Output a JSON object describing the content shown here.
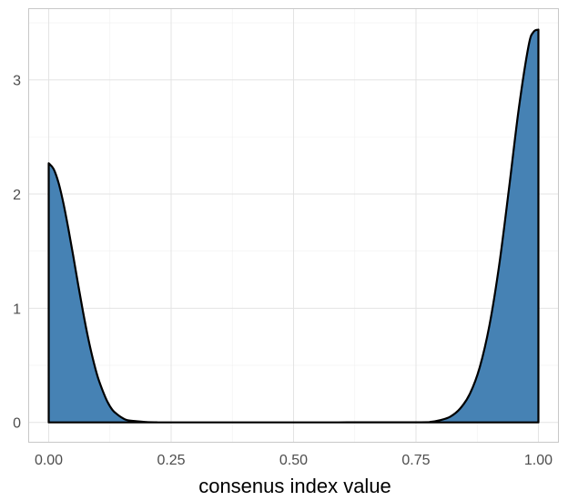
{
  "chart_data": {
    "type": "area",
    "title": "",
    "xlabel": "consenus index value",
    "ylabel": "",
    "xlim": [
      -0.04,
      1.04
    ],
    "ylim": [
      -0.17,
      3.62
    ],
    "x_ticks": [
      0,
      0.25,
      0.5,
      0.75,
      1
    ],
    "x_tick_labels": [
      "0.00",
      "0.25",
      "0.50",
      "0.75",
      "1.00"
    ],
    "y_ticks": [
      0,
      1,
      2,
      3
    ],
    "y_tick_labels": [
      "0",
      "1",
      "2",
      "3"
    ],
    "grid": true,
    "legend": "none",
    "fill_color": "#4682B4",
    "line_color": "#000000",
    "series": [
      {
        "x": [
          0,
          0.01,
          0.02,
          0.03,
          0.04,
          0.05,
          0.06,
          0.07,
          0.08,
          0.09,
          0.1,
          0.11,
          0.12,
          0.13,
          0.14,
          0.15,
          0.16,
          0.18,
          0.2,
          0.22,
          0.25,
          0.5,
          0.75,
          0.78,
          0.8,
          0.82,
          0.84,
          0.86,
          0.88,
          0.9,
          0.92,
          0.94,
          0.96,
          0.98,
          0.99,
          1
        ],
        "y": [
          2.27,
          2.22,
          2.1,
          1.92,
          1.7,
          1.46,
          1.21,
          0.97,
          0.75,
          0.56,
          0.4,
          0.28,
          0.18,
          0.11,
          0.07,
          0.04,
          0.02,
          0.01,
          0.003,
          0.001,
          0,
          0,
          0.001,
          0.005,
          0.02,
          0.05,
          0.12,
          0.25,
          0.48,
          0.85,
          1.38,
          2.05,
          2.75,
          3.3,
          3.42,
          3.44
        ]
      }
    ]
  }
}
